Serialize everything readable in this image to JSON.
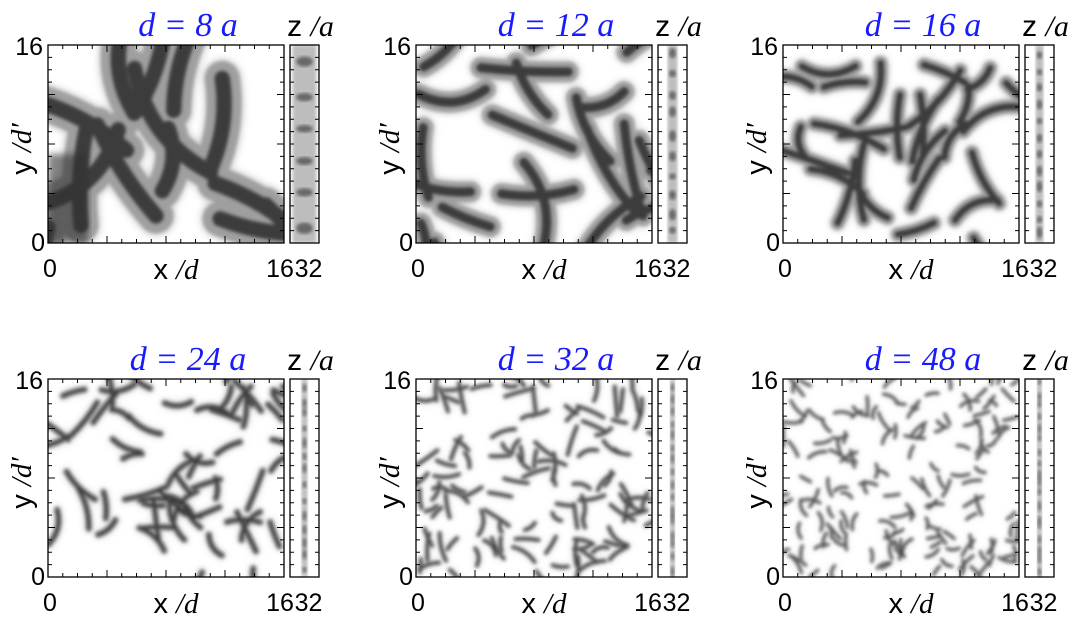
{
  "colors": {
    "title": "#1a1aff",
    "frame": "#000000",
    "structure": "#1c1c1c"
  },
  "chart_data": [
    {
      "type": "heatmap",
      "title": "d = 8 a",
      "xlabel": "x /d",
      "ylabel": "y /d′",
      "side_label": "z /a",
      "xlim": [
        0,
        16
      ],
      "ylim": [
        0,
        16
      ],
      "zlim": [
        0,
        32
      ],
      "x_ticks": [
        "0",
        "16"
      ],
      "y_ticks": [
        "0",
        "16"
      ],
      "z_tick": "32"
    },
    {
      "type": "heatmap",
      "title": "d = 12 a",
      "xlabel": "x /d",
      "ylabel": "y /d′",
      "side_label": "z /a",
      "xlim": [
        0,
        16
      ],
      "ylim": [
        0,
        16
      ],
      "zlim": [
        0,
        32
      ],
      "x_ticks": [
        "0",
        "16"
      ],
      "y_ticks": [
        "0",
        "16"
      ],
      "z_tick": "32"
    },
    {
      "type": "heatmap",
      "title": "d = 16 a",
      "xlabel": "x /d",
      "ylabel": "y /d′",
      "side_label": "z /a",
      "xlim": [
        0,
        16
      ],
      "ylim": [
        0,
        16
      ],
      "zlim": [
        0,
        32
      ],
      "x_ticks": [
        "0",
        "16"
      ],
      "y_ticks": [
        "0",
        "16"
      ],
      "z_tick": "32"
    },
    {
      "type": "heatmap",
      "title": "d = 24 a",
      "xlabel": "x /d",
      "ylabel": "y /d′",
      "side_label": "z /a",
      "xlim": [
        0,
        16
      ],
      "ylim": [
        0,
        16
      ],
      "zlim": [
        0,
        32
      ],
      "x_ticks": [
        "0",
        "16"
      ],
      "y_ticks": [
        "0",
        "16"
      ],
      "z_tick": "32"
    },
    {
      "type": "heatmap",
      "title": "d = 32 a",
      "xlabel": "x /d",
      "ylabel": "y /d′",
      "side_label": "z /a",
      "xlim": [
        0,
        16
      ],
      "ylim": [
        0,
        16
      ],
      "zlim": [
        0,
        32
      ],
      "x_ticks": [
        "0",
        "16"
      ],
      "y_ticks": [
        "0",
        "16"
      ],
      "z_tick": "32"
    },
    {
      "type": "heatmap",
      "title": "d = 48 a",
      "xlabel": "x /d",
      "ylabel": "y /d′",
      "side_label": "z /a",
      "xlim": [
        0,
        16
      ],
      "ylim": [
        0,
        16
      ],
      "zlim": [
        0,
        32
      ],
      "x_ticks": [
        "0",
        "16"
      ],
      "y_ticks": [
        "0",
        "16"
      ],
      "z_tick": "32"
    }
  ]
}
